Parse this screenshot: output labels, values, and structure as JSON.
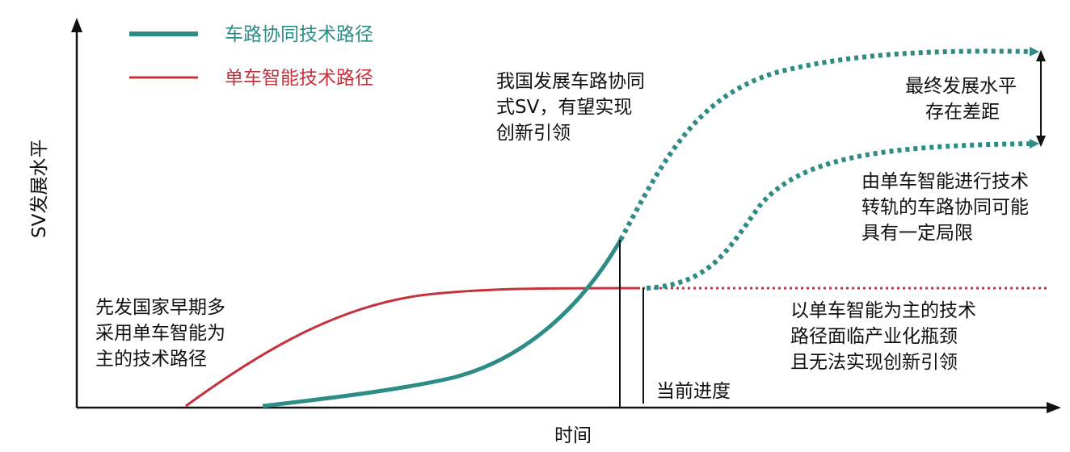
{
  "colors": {
    "collab": "#2e8c86",
    "single": "#c4323c",
    "axis": "#111111",
    "text": "#111111"
  },
  "legend": {
    "collab_label": "车路协同技术路径",
    "single_label": "单车智能技术路径"
  },
  "axes": {
    "y_label": "SV发展水平",
    "x_label": "时间"
  },
  "annotations": {
    "china_lines": [
      "我国发展车路协同",
      "式SV，有望实现",
      "创新引领"
    ],
    "gap_lines": [
      "最终发展水平",
      "存在差距"
    ],
    "transition_lines": [
      "由单车智能进行技术",
      "转轨的车路协同可能",
      "具有一定局限"
    ],
    "early_lines": [
      "先发国家早期多",
      "采用单车智能为",
      "主的技术路径"
    ],
    "bottleneck_lines": [
      "以单车智能为主的技术",
      "路径面临产业化瓶颈",
      "且无法实现创新引领"
    ],
    "current_progress": "当前进度"
  }
}
